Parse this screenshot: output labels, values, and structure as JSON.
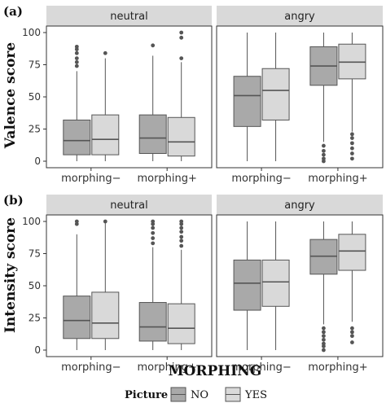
{
  "figure": {
    "x_title": "MORPHING",
    "legend_title": "Picture",
    "legend_items": [
      {
        "label": "NO",
        "color": "#a9a9a9"
      },
      {
        "label": "YES",
        "color": "#d9d9d9"
      }
    ],
    "strip_color": "#d9d9d9",
    "box_stroke": "#555555"
  },
  "chart_data": [
    {
      "type": "box",
      "tag": "(a)",
      "ylabel": "Valence score",
      "ylim": [
        0,
        100
      ],
      "yticks": [
        0,
        25,
        50,
        75,
        100
      ],
      "series_names": [
        "NO",
        "YES"
      ],
      "facets": [
        "neutral",
        "angry"
      ],
      "categories": [
        "morphing−",
        "morphing+"
      ],
      "data": [
        {
          "facet": "neutral",
          "category": "morphing−",
          "series": "NO",
          "min": 0,
          "q1": 5,
          "median": 16,
          "q3": 32,
          "max": 70,
          "outliers": [
            74,
            77,
            80,
            84,
            87,
            89
          ]
        },
        {
          "facet": "neutral",
          "category": "morphing−",
          "series": "YES",
          "min": 0,
          "q1": 5,
          "median": 17,
          "q3": 36,
          "max": 80,
          "outliers": [
            84
          ]
        },
        {
          "facet": "neutral",
          "category": "morphing+",
          "series": "NO",
          "min": 0,
          "q1": 6,
          "median": 18,
          "q3": 36,
          "max": 82,
          "outliers": [
            90
          ]
        },
        {
          "facet": "neutral",
          "category": "morphing+",
          "series": "YES",
          "min": 0,
          "q1": 4,
          "median": 15,
          "q3": 34,
          "max": 77,
          "outliers": [
            80,
            96,
            100
          ]
        },
        {
          "facet": "angry",
          "category": "morphing−",
          "series": "NO",
          "min": 0,
          "q1": 27,
          "median": 51,
          "q3": 66,
          "max": 100,
          "outliers": []
        },
        {
          "facet": "angry",
          "category": "morphing−",
          "series": "YES",
          "min": 0,
          "q1": 32,
          "median": 55,
          "q3": 72,
          "max": 100,
          "outliers": []
        },
        {
          "facet": "angry",
          "category": "morphing+",
          "series": "NO",
          "min": 15,
          "q1": 59,
          "median": 74,
          "q3": 89,
          "max": 100,
          "outliers": [
            0,
            2,
            5,
            8,
            12
          ]
        },
        {
          "facet": "angry",
          "category": "morphing+",
          "series": "YES",
          "min": 23,
          "q1": 64,
          "median": 77,
          "q3": 91,
          "max": 100,
          "outliers": [
            2,
            6,
            10,
            14,
            18,
            21
          ]
        }
      ]
    },
    {
      "type": "box",
      "tag": "(b)",
      "ylabel": "Intensity score",
      "ylim": [
        0,
        100
      ],
      "yticks": [
        0,
        25,
        50,
        75,
        100
      ],
      "series_names": [
        "NO",
        "YES"
      ],
      "facets": [
        "neutral",
        "angry"
      ],
      "categories": [
        "morphing−",
        "morphing+"
      ],
      "data": [
        {
          "facet": "neutral",
          "category": "morphing−",
          "series": "NO",
          "min": 0,
          "q1": 9,
          "median": 23,
          "q3": 42,
          "max": 90,
          "outliers": [
            98,
            100
          ]
        },
        {
          "facet": "neutral",
          "category": "morphing−",
          "series": "YES",
          "min": 0,
          "q1": 9,
          "median": 21,
          "q3": 45,
          "max": 100,
          "outliers": [
            100
          ]
        },
        {
          "facet": "neutral",
          "category": "morphing+",
          "series": "NO",
          "min": 0,
          "q1": 7,
          "median": 18,
          "q3": 37,
          "max": 80,
          "outliers": [
            83,
            87,
            91,
            95,
            98,
            100
          ]
        },
        {
          "facet": "neutral",
          "category": "morphing+",
          "series": "YES",
          "min": 0,
          "q1": 5,
          "median": 17,
          "q3": 36,
          "max": 78,
          "outliers": [
            81,
            85,
            88,
            92,
            95,
            98,
            100
          ]
        },
        {
          "facet": "angry",
          "category": "morphing−",
          "series": "NO",
          "min": 0,
          "q1": 31,
          "median": 52,
          "q3": 70,
          "max": 100,
          "outliers": []
        },
        {
          "facet": "angry",
          "category": "morphing−",
          "series": "YES",
          "min": 0,
          "q1": 34,
          "median": 53,
          "q3": 70,
          "max": 100,
          "outliers": []
        },
        {
          "facet": "angry",
          "category": "morphing+",
          "series": "NO",
          "min": 20,
          "q1": 59,
          "median": 73,
          "q3": 86,
          "max": 100,
          "outliers": [
            0,
            3,
            5,
            8,
            11,
            14,
            17
          ]
        },
        {
          "facet": "angry",
          "category": "morphing+",
          "series": "YES",
          "min": 22,
          "q1": 62,
          "median": 77,
          "q3": 90,
          "max": 100,
          "outliers": [
            6,
            11,
            14,
            17
          ]
        }
      ]
    }
  ]
}
